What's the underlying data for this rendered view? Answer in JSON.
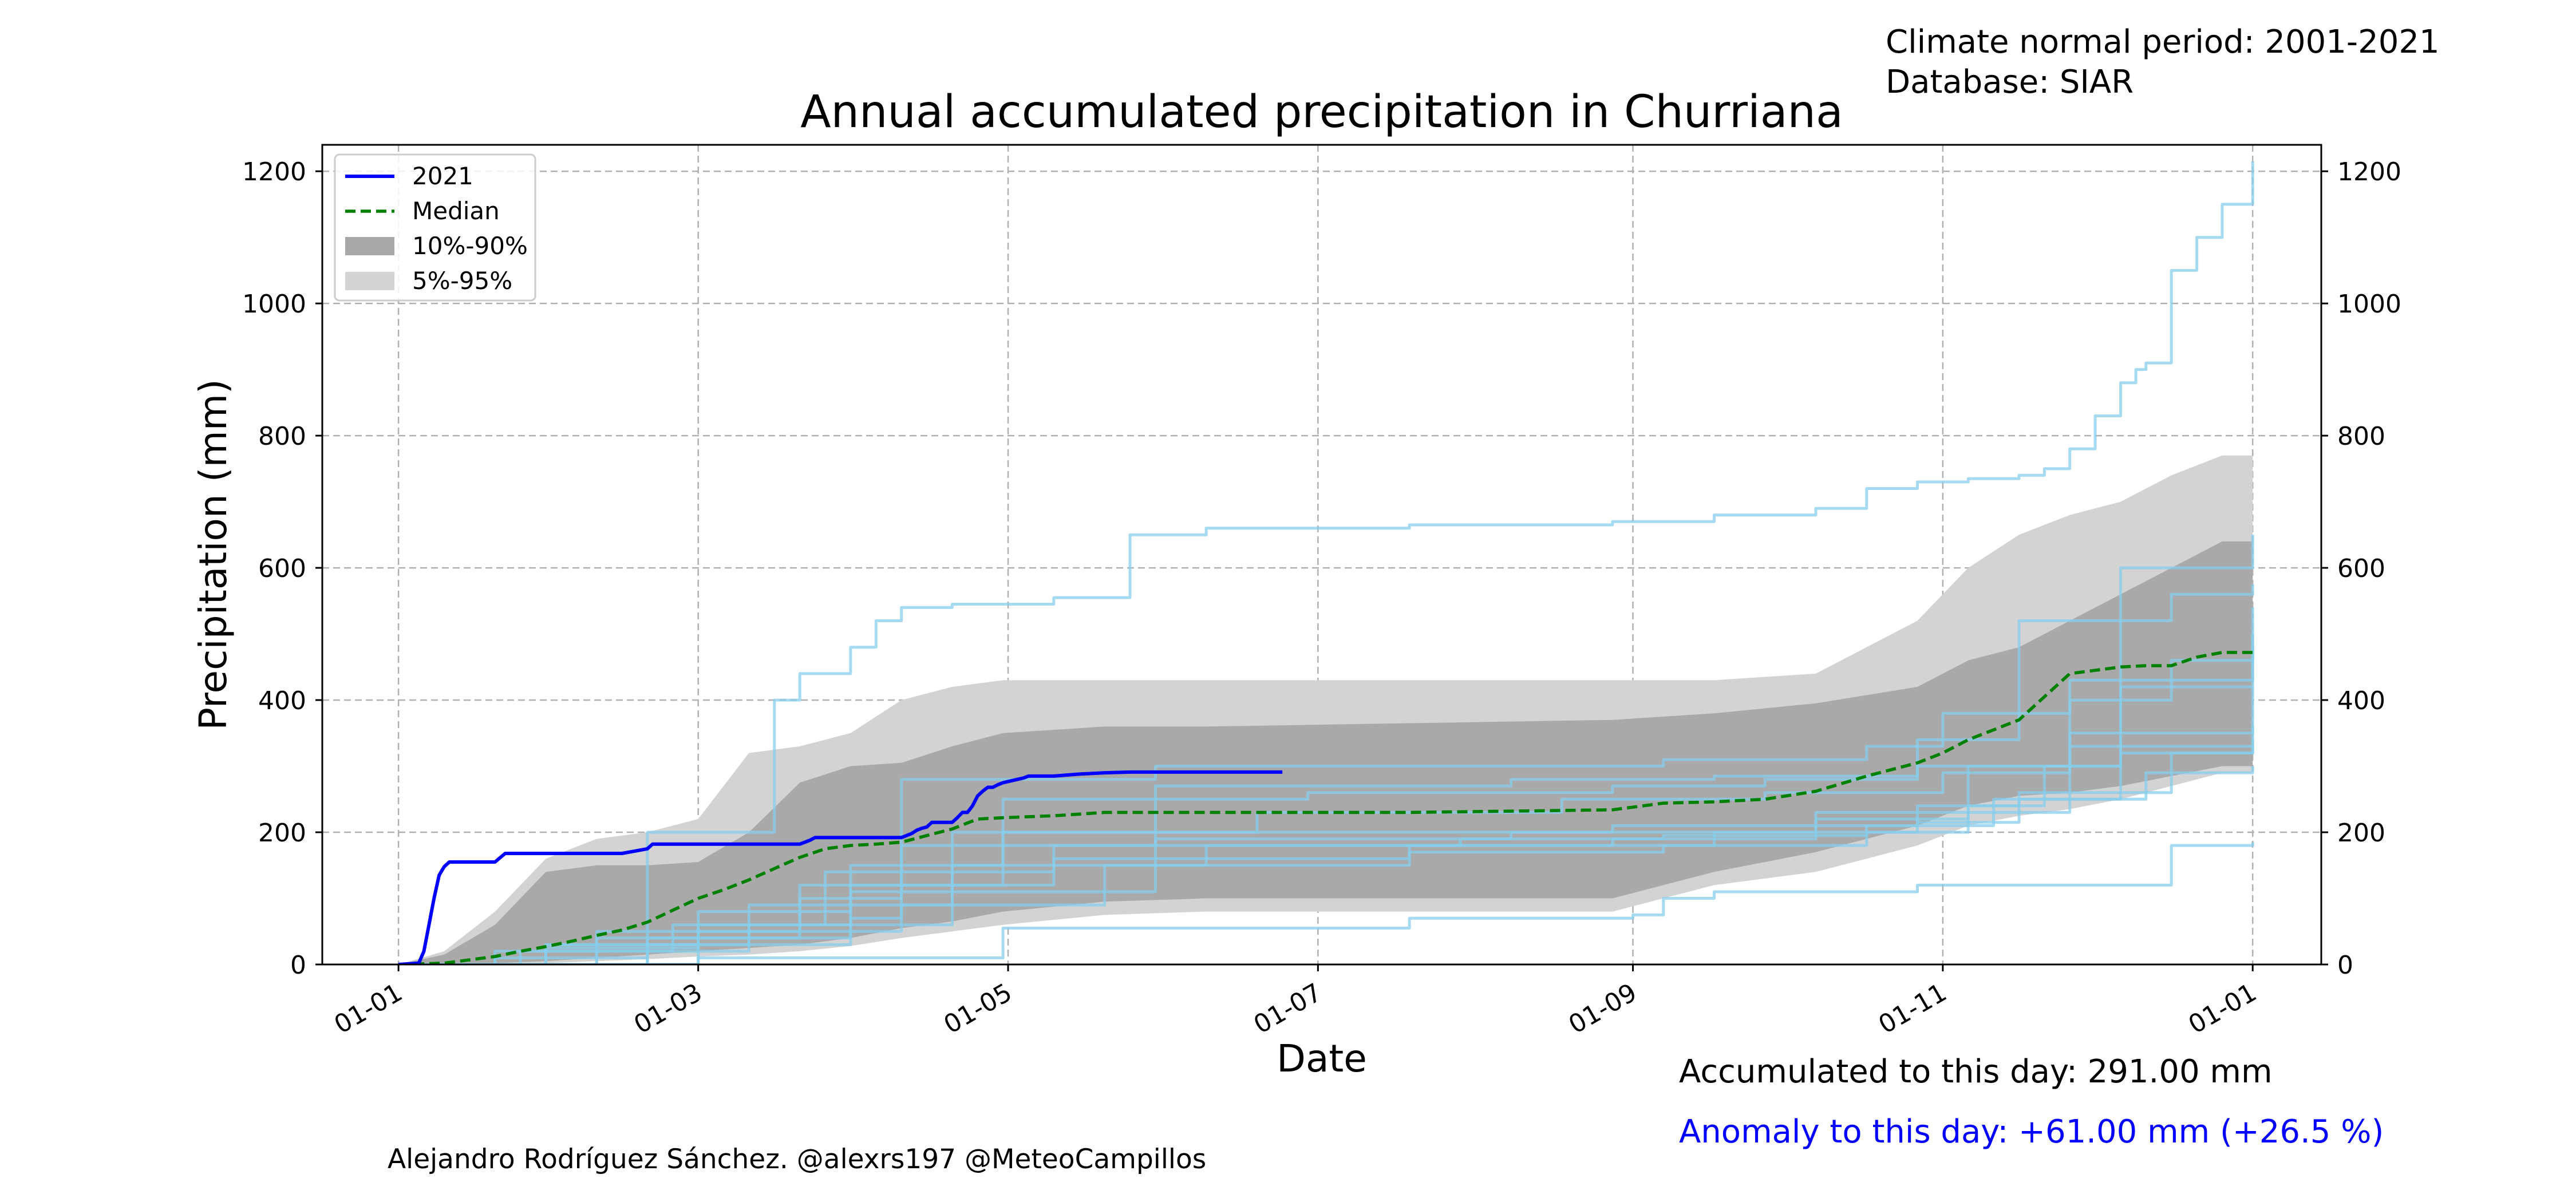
{
  "header": {
    "climate_normal": "Climate normal period: 2001-2021",
    "database": "Database: SIAR"
  },
  "footer": {
    "accumulated": "Accumulated to this day: 291.00 mm",
    "anomaly": "Anomaly to this day: +61.00 mm (+26.5 %)",
    "author": "Alejandro Rodríguez Sánchez. @alexrs197 @MeteoCampillos"
  },
  "colors": {
    "current_year": "#0000ff",
    "median": "#008000",
    "band_10_90": "#a9a9a9",
    "band_5_95": "#d3d3d3",
    "past_years": "#87ceeb",
    "anomaly_text": "#0000ff"
  },
  "chart_data": {
    "type": "line",
    "title": "Annual accumulated precipitation in Churriana",
    "xlabel": "Date",
    "ylabel": "Precipitation (mm)",
    "x_tick_labels": [
      "01-01",
      "01-03",
      "01-05",
      "01-07",
      "01-09",
      "01-11",
      "01-01"
    ],
    "x_tick_days": [
      1,
      60,
      121,
      182,
      244,
      305,
      366
    ],
    "y_ticks": [
      0,
      200,
      400,
      600,
      800,
      1000,
      1200
    ],
    "ylim": [
      0,
      1200
    ],
    "grid": true,
    "legend": {
      "position": "top-left",
      "entries": [
        "2021",
        "Median",
        "10%-90%",
        "5%-95%"
      ]
    },
    "series": [
      {
        "name": "2021",
        "x_day": [
          1,
          5,
          6,
          7,
          8,
          9,
          10,
          11,
          12,
          20,
          22,
          45,
          50,
          51,
          80,
          82,
          83,
          100,
          102,
          103,
          104,
          105,
          106,
          110,
          111,
          112,
          113,
          114,
          115,
          116,
          117,
          118,
          119,
          120,
          124,
          125,
          130,
          135,
          140,
          145,
          150,
          175
        ],
        "y": [
          0,
          2,
          20,
          60,
          100,
          135,
          148,
          155,
          155,
          155,
          168,
          168,
          175,
          182,
          182,
          188,
          192,
          192,
          198,
          203,
          206,
          208,
          215,
          215,
          222,
          230,
          230,
          240,
          255,
          262,
          268,
          268,
          272,
          275,
          282,
          285,
          285,
          288,
          290,
          291,
          291,
          291
        ]
      },
      {
        "name": "Median",
        "x_day": [
          1,
          10,
          20,
          25,
          30,
          35,
          40,
          45,
          50,
          55,
          60,
          65,
          70,
          75,
          80,
          85,
          90,
          95,
          100,
          105,
          110,
          115,
          120,
          130,
          140,
          150,
          160,
          180,
          200,
          220,
          240,
          250,
          260,
          270,
          280,
          290,
          300,
          305,
          310,
          320,
          330,
          340,
          345,
          350,
          355,
          360,
          366
        ],
        "y": [
          0,
          2,
          12,
          20,
          27,
          35,
          44,
          52,
          64,
          82,
          100,
          113,
          128,
          145,
          162,
          175,
          180,
          182,
          185,
          195,
          205,
          220,
          222,
          225,
          230,
          230,
          230,
          230,
          230,
          232,
          234,
          244,
          246,
          250,
          262,
          285,
          305,
          320,
          340,
          370,
          440,
          450,
          452,
          452,
          465,
          472,
          472
        ]
      }
    ],
    "bands": [
      {
        "name": "10%-90%",
        "x_day": [
          1,
          10,
          20,
          30,
          40,
          50,
          60,
          70,
          80,
          90,
          100,
          110,
          120,
          140,
          160,
          200,
          240,
          260,
          280,
          300,
          310,
          320,
          330,
          340,
          350,
          360,
          366
        ],
        "lower": [
          0,
          0,
          2,
          5,
          10,
          15,
          20,
          25,
          30,
          40,
          55,
          65,
          80,
          95,
          100,
          100,
          100,
          140,
          170,
          210,
          240,
          255,
          260,
          270,
          285,
          300,
          300
        ],
        "upper": [
          0,
          15,
          60,
          140,
          150,
          150,
          155,
          200,
          275,
          300,
          305,
          330,
          350,
          360,
          360,
          365,
          370,
          380,
          395,
          420,
          460,
          480,
          520,
          560,
          600,
          640,
          640
        ]
      },
      {
        "name": "5%-95%",
        "x_day": [
          1,
          10,
          20,
          30,
          40,
          50,
          60,
          70,
          80,
          90,
          100,
          110,
          120,
          140,
          160,
          200,
          240,
          260,
          280,
          300,
          310,
          320,
          330,
          340,
          350,
          360,
          366
        ],
        "lower": [
          0,
          0,
          0,
          2,
          5,
          8,
          12,
          15,
          20,
          28,
          40,
          50,
          60,
          75,
          80,
          80,
          80,
          120,
          140,
          180,
          210,
          225,
          235,
          250,
          270,
          290,
          290
        ],
        "upper": [
          0,
          20,
          80,
          160,
          190,
          200,
          220,
          320,
          330,
          350,
          400,
          420,
          430,
          430,
          430,
          430,
          430,
          430,
          440,
          520,
          600,
          650,
          680,
          700,
          740,
          770,
          770
        ]
      }
    ],
    "past_years": [
      {
        "x_day": [
          1,
          50,
          70,
          75,
          80,
          90,
          95,
          100,
          110,
          130,
          145,
          160,
          200,
          240,
          260,
          280,
          290,
          300,
          310,
          320,
          325,
          330,
          335,
          340,
          343,
          345,
          350,
          355,
          360,
          366
        ],
        "y": [
          0,
          200,
          200,
          400,
          440,
          480,
          520,
          540,
          545,
          555,
          650,
          660,
          665,
          670,
          680,
          690,
          720,
          730,
          735,
          740,
          750,
          780,
          830,
          880,
          900,
          910,
          1050,
          1100,
          1150,
          1215
        ]
      },
      {
        "x_day": [
          1,
          60,
          120,
          200,
          244,
          250,
          260,
          300,
          350,
          366
        ],
        "y": [
          0,
          10,
          55,
          70,
          75,
          100,
          110,
          120,
          180,
          185
        ]
      },
      {
        "x_day": [
          1,
          40,
          80,
          100,
          150,
          240,
          280,
          300,
          320,
          340,
          366
        ],
        "y": [
          0,
          40,
          100,
          180,
          200,
          210,
          230,
          240,
          250,
          320,
          340
        ]
      },
      {
        "x_day": [
          1,
          30,
          60,
          90,
          120,
          180,
          240,
          270,
          300,
          330,
          350,
          366
        ],
        "y": [
          0,
          30,
          80,
          150,
          250,
          260,
          270,
          280,
          300,
          400,
          460,
          480
        ]
      },
      {
        "x_day": [
          1,
          20,
          70,
          90,
          130,
          200,
          250,
          290,
          310,
          325,
          340,
          366
        ],
        "y": [
          0,
          20,
          60,
          120,
          160,
          170,
          180,
          200,
          240,
          300,
          600,
          650
        ]
      },
      {
        "x_day": [
          1,
          50,
          90,
          100,
          150,
          250,
          290,
          305,
          330,
          366
        ],
        "y": [
          0,
          30,
          70,
          280,
          300,
          310,
          330,
          380,
          430,
          500
        ]
      },
      {
        "x_day": [
          1,
          40,
          80,
          120,
          170,
          230,
          270,
          305,
          330,
          366
        ],
        "y": [
          0,
          50,
          120,
          200,
          230,
          250,
          260,
          290,
          350,
          420
        ]
      },
      {
        "x_day": [
          1,
          30,
          60,
          100,
          140,
          200,
          260,
          300,
          330,
          366
        ],
        "y": [
          0,
          25,
          50,
          90,
          150,
          180,
          200,
          230,
          330,
          360
        ]
      },
      {
        "x_day": [
          1,
          20,
          50,
          90,
          150,
          220,
          280,
          300,
          320,
          350,
          366
        ],
        "y": [
          0,
          10,
          40,
          110,
          190,
          200,
          210,
          215,
          260,
          320,
          330
        ]
      },
      {
        "x_day": [
          1,
          60,
          110,
          160,
          240,
          280,
          310,
          340,
          366
        ],
        "y": [
          0,
          60,
          150,
          180,
          190,
          220,
          300,
          420,
          540
        ]
      },
      {
        "x_day": [
          1,
          30,
          70,
          110,
          150,
          220,
          260,
          300,
          320,
          350,
          366
        ],
        "y": [
          0,
          30,
          90,
          200,
          270,
          280,
          285,
          340,
          520,
          560,
          575
        ]
      },
      {
        "x_day": [
          1,
          25,
          55,
          85,
          130,
          210,
          250,
          290,
          315,
          345,
          366
        ],
        "y": [
          0,
          20,
          60,
          140,
          180,
          190,
          195,
          210,
          250,
          290,
          300
        ]
      }
    ]
  }
}
